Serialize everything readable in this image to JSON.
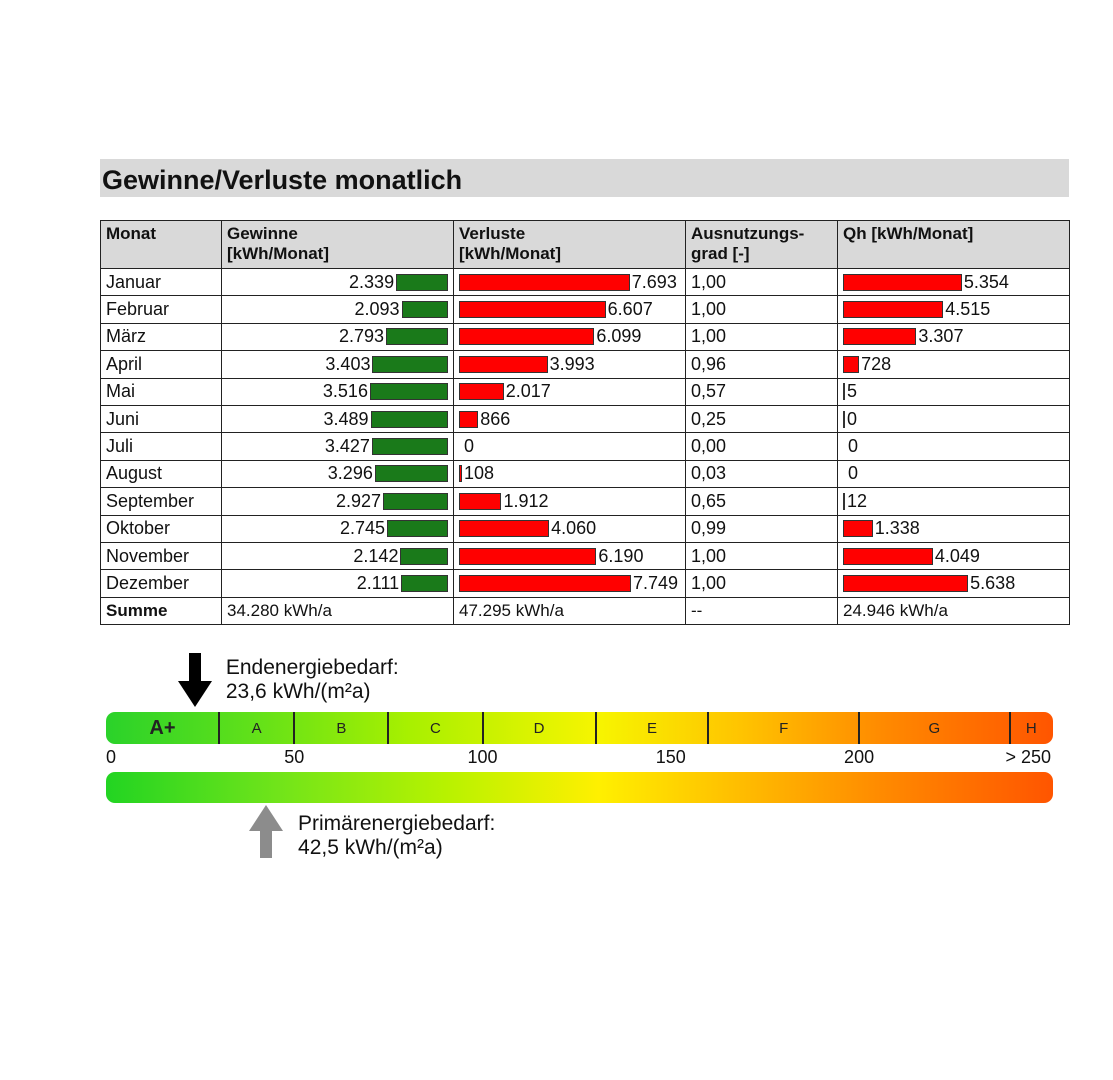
{
  "title": "Gewinne/Verluste monatlich",
  "table": {
    "headers": [
      "Monat",
      "Gewinne\n[kWh/Monat]",
      "Verluste\n[kWh/Monat]",
      "Ausnutzungs-\ngrad [-]",
      "Qh [kWh/Monat]"
    ],
    "header_lines": [
      [
        "Monat"
      ],
      [
        "Gewinne",
        "[kWh/Monat]"
      ],
      [
        "Verluste",
        "[kWh/Monat]"
      ],
      [
        "Ausnutzungs-",
        "grad [-]"
      ],
      [
        "Qh [kWh/Monat]"
      ]
    ],
    "rows": [
      {
        "monat": "Januar",
        "gewinne": 2339,
        "gewinne_text": "2.339",
        "verluste": 7693,
        "verluste_text": "7.693",
        "grad": "1,00",
        "qh": 5354,
        "qh_text": "5.354"
      },
      {
        "monat": "Februar",
        "gewinne": 2093,
        "gewinne_text": "2.093",
        "verluste": 6607,
        "verluste_text": "6.607",
        "grad": "1,00",
        "qh": 4515,
        "qh_text": "4.515"
      },
      {
        "monat": "März",
        "gewinne": 2793,
        "gewinne_text": "2.793",
        "verluste": 6099,
        "verluste_text": "6.099",
        "grad": "1,00",
        "qh": 3307,
        "qh_text": "3.307"
      },
      {
        "monat": "April",
        "gewinne": 3403,
        "gewinne_text": "3.403",
        "verluste": 3993,
        "verluste_text": "3.993",
        "grad": "0,96",
        "qh": 728,
        "qh_text": "728"
      },
      {
        "monat": "Mai",
        "gewinne": 3516,
        "gewinne_text": "3.516",
        "verluste": 2017,
        "verluste_text": "2.017",
        "grad": "0,57",
        "qh": 5,
        "qh_text": "5"
      },
      {
        "monat": "Juni",
        "gewinne": 3489,
        "gewinne_text": "3.489",
        "verluste": 866,
        "verluste_text": "866",
        "grad": "0,25",
        "qh": 0,
        "qh_text": "0",
        "qh_marker": true
      },
      {
        "monat": "Juli",
        "gewinne": 3427,
        "gewinne_text": "3.427",
        "verluste": 0,
        "verluste_text": "0",
        "grad": "0,00",
        "qh": 0,
        "qh_text": "0"
      },
      {
        "monat": "August",
        "gewinne": 3296,
        "gewinne_text": "3.296",
        "verluste": 108,
        "verluste_text": "108",
        "grad": "0,03",
        "qh": 0,
        "qh_text": "0"
      },
      {
        "monat": "September",
        "gewinne": 2927,
        "gewinne_text": "2.927",
        "verluste": 1912,
        "verluste_text": "1.912",
        "grad": "0,65",
        "qh": 12,
        "qh_text": "12"
      },
      {
        "monat": "Oktober",
        "gewinne": 2745,
        "gewinne_text": "2.745",
        "verluste": 4060,
        "verluste_text": "4.060",
        "grad": "0,99",
        "qh": 1338,
        "qh_text": "1.338"
      },
      {
        "monat": "November",
        "gewinne": 2142,
        "gewinne_text": "2.142",
        "verluste": 6190,
        "verluste_text": "6.190",
        "grad": "1,00",
        "qh": 4049,
        "qh_text": "4.049"
      },
      {
        "monat": "Dezember",
        "gewinne": 2111,
        "gewinne_text": "2.111",
        "verluste": 7749,
        "verluste_text": "7.749",
        "grad": "1,00",
        "qh": 5638,
        "qh_text": "5.638"
      }
    ],
    "summe": {
      "label": "Summe",
      "gewinne": "34.280 kWh/a",
      "verluste": "47.295 kWh/a",
      "grad": "--",
      "qh": "24.946 kWh/a"
    }
  },
  "colors": {
    "gewinne": "#1a7a1a",
    "verluste": "#ff0000",
    "qh": "#ff0000"
  },
  "energy": {
    "end_label": "Endenergiebedarf:",
    "end_value_text": "23,6 kWh/(m²a)",
    "end_value": 23.6,
    "primary_label": "Primärenergiebedarf:",
    "primary_value_text": "42,5 kWh/(m²a)",
    "primary_value": 42.5,
    "classes": [
      {
        "name": "A+",
        "from": 0,
        "to": 30
      },
      {
        "name": "A",
        "from": 30,
        "to": 50
      },
      {
        "name": "B",
        "from": 50,
        "to": 75
      },
      {
        "name": "C",
        "from": 75,
        "to": 100
      },
      {
        "name": "D",
        "from": 100,
        "to": 130
      },
      {
        "name": "E",
        "from": 130,
        "to": 160
      },
      {
        "name": "F",
        "from": 160,
        "to": 200
      },
      {
        "name": "G",
        "from": 200,
        "to": 240
      },
      {
        "name": "H",
        "from": 240,
        "to": 250
      }
    ],
    "ticks": [
      {
        "value": 0,
        "label": "0"
      },
      {
        "value": 50,
        "label": "50"
      },
      {
        "value": 100,
        "label": "100"
      },
      {
        "value": 150,
        "label": "150"
      },
      {
        "value": 200,
        "label": "200"
      },
      {
        "value": 250,
        "label": "> 250"
      }
    ],
    "scale_max": 250
  }
}
